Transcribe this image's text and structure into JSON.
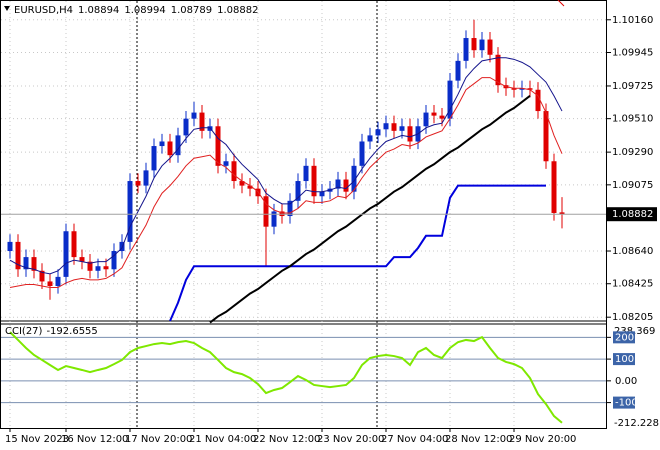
{
  "chart_data": [
    {
      "type": "candlestick",
      "symbol": "EURUSD,H4",
      "categories": [
        "15 Nov 2023",
        null,
        null,
        null,
        null,
        null,
        null,
        "16 Nov 12:00",
        null,
        null,
        null,
        null,
        null,
        null,
        null,
        "17 Nov 20:00",
        null,
        null,
        null,
        null,
        null,
        null,
        null,
        "21 Nov 04:00",
        null,
        null,
        null,
        null,
        null,
        null,
        null,
        "22 Nov 12:00",
        null,
        null,
        null,
        null,
        null,
        null,
        null,
        "23 Nov 20:00",
        null,
        null,
        null,
        null,
        null,
        null,
        null,
        "27 Nov 04:00",
        null,
        null,
        null,
        null,
        null,
        null,
        null,
        "28 Nov 12:00",
        null,
        null,
        null,
        null,
        null,
        null,
        null,
        "29 Nov 20:00",
        null,
        null,
        null,
        null,
        null,
        null
      ],
      "open": [
        1.0864,
        1.087,
        1.0852,
        1.086,
        1.0851,
        1.0844,
        1.0841,
        1.0847,
        1.0877,
        1.086,
        1.0857,
        1.0851,
        1.0854,
        1.0852,
        1.0864,
        1.087,
        1.091,
        1.0907,
        1.0917,
        1.0933,
        1.0936,
        1.0927,
        1.094,
        1.0951,
        1.0955,
        1.0943,
        1.0946,
        1.092,
        1.0923,
        1.091,
        1.0907,
        1.0905,
        1.09,
        1.088,
        1.089,
        1.0887,
        1.0897,
        1.091,
        1.092,
        1.09,
        1.0903,
        1.0905,
        1.0911,
        1.0903,
        1.092,
        1.0936,
        1.094,
        1.0944,
        1.0948,
        1.0943,
        1.0946,
        1.0936,
        1.0946,
        1.0955,
        1.0953,
        1.0951,
        1.0976,
        1.0989,
        1.1004,
        1.0996,
        1.1003,
        1.0993,
        1.0973,
        1.0971,
        1.097,
        1.0971,
        1.097,
        1.0956,
        1.0923,
        1.08894
      ],
      "high": [
        1.0875,
        1.0875,
        1.0865,
        1.0865,
        1.0856,
        1.0849,
        1.0852,
        1.0882,
        1.0882,
        1.0865,
        1.0862,
        1.0859,
        1.0859,
        1.0869,
        1.0875,
        1.0915,
        1.0915,
        1.0922,
        1.0938,
        1.0941,
        1.0941,
        1.0945,
        1.0956,
        1.0962,
        1.096,
        1.0951,
        1.0951,
        1.0928,
        1.0928,
        1.0915,
        1.0912,
        1.091,
        1.0905,
        1.0895,
        1.0895,
        1.0902,
        1.0915,
        1.0925,
        1.0925,
        1.0908,
        1.091,
        1.0916,
        1.0916,
        1.0925,
        1.0941,
        1.0945,
        1.0949,
        1.0953,
        1.0953,
        1.0951,
        1.0951,
        1.0951,
        1.096,
        1.096,
        1.0958,
        1.0981,
        1.0994,
        1.1009,
        1.1016,
        1.1008,
        1.1008,
        1.0998,
        1.0978,
        1.0976,
        1.0976,
        1.0976,
        1.0975,
        1.0961,
        1.0928,
        1.08994
      ],
      "low": [
        1.0859,
        1.0847,
        1.0847,
        1.0846,
        1.0839,
        1.0832,
        1.0836,
        1.0842,
        1.0855,
        1.0852,
        1.0846,
        1.0846,
        1.0847,
        1.0847,
        1.0859,
        1.0865,
        1.0902,
        1.0902,
        1.0912,
        1.0928,
        1.0922,
        1.0922,
        1.0935,
        1.0946,
        1.0938,
        1.0938,
        1.0915,
        1.0915,
        1.0905,
        1.0902,
        1.09,
        1.0895,
        1.0854,
        1.0875,
        1.0882,
        1.0882,
        1.0892,
        1.0905,
        1.0895,
        1.0895,
        1.0898,
        1.09,
        1.0898,
        1.0898,
        1.0915,
        1.0931,
        1.0935,
        1.0939,
        1.0938,
        1.0938,
        1.0931,
        1.0931,
        1.0941,
        1.0948,
        1.0946,
        1.0946,
        1.0971,
        1.0984,
        1.0991,
        1.0991,
        1.0988,
        1.0968,
        1.0966,
        1.0965,
        1.0965,
        1.0965,
        1.0951,
        1.0918,
        1.0884,
        1.08789
      ],
      "close": [
        1.087,
        1.0852,
        1.086,
        1.0851,
        1.0844,
        1.0841,
        1.0847,
        1.0877,
        1.086,
        1.0857,
        1.0851,
        1.0854,
        1.0852,
        1.0864,
        1.087,
        1.091,
        1.0907,
        1.0917,
        1.0933,
        1.0936,
        1.0927,
        1.094,
        1.0951,
        1.0955,
        1.0943,
        1.0946,
        1.092,
        1.0923,
        1.091,
        1.0907,
        1.0905,
        1.09,
        1.088,
        1.089,
        1.0887,
        1.0897,
        1.091,
        1.092,
        1.09,
        1.0903,
        1.0905,
        1.0911,
        1.0903,
        1.092,
        1.0936,
        1.094,
        1.0944,
        1.0948,
        1.0943,
        1.0946,
        1.0936,
        1.0946,
        1.0955,
        1.0953,
        1.0951,
        1.0976,
        1.0989,
        1.1004,
        1.0996,
        1.1003,
        1.0993,
        1.0973,
        1.0971,
        1.097,
        1.0971,
        1.097,
        1.0956,
        1.0923,
        1.0889,
        1.08882
      ],
      "up_color": "#0a2dc8",
      "down_color": "#e00000",
      "series": [
        {
          "color": "#14148c",
          "width": 1,
          "values": [
            1.0858,
            1.0855,
            1.0853,
            1.0852,
            1.085,
            1.0849,
            1.0851,
            1.0856,
            1.0858,
            1.0857,
            1.0856,
            1.0857,
            1.0857,
            1.0861,
            1.0866,
            1.088,
            1.089,
            1.09,
            1.0912,
            1.092,
            1.0925,
            1.0931,
            1.0938,
            1.0944,
            1.0945,
            1.0945,
            1.0938,
            1.0934,
            1.0927,
            1.0921,
            1.0916,
            1.0911,
            1.0902,
            1.0898,
            1.0895,
            1.0895,
            1.0899,
            1.0904,
            1.0903,
            1.0903,
            1.0904,
            1.0906,
            1.0905,
            1.091,
            1.0918,
            1.0925,
            1.0931,
            1.0936,
            1.0938,
            1.094,
            1.0939,
            1.0941,
            1.0945,
            1.0947,
            1.0948,
            1.0957,
            1.0967,
            1.0978,
            1.0984,
            1.0989,
            1.099,
            1.0991,
            1.0991,
            1.099,
            1.0988,
            1.0985,
            1.098,
            1.0975,
            1.0966,
            1.0956
          ]
        },
        {
          "color": "#e02020",
          "width": 1,
          "values": [
            1.084,
            1.0841,
            1.0842,
            1.0842,
            1.0841,
            1.084,
            1.084,
            1.0843,
            1.0845,
            1.0846,
            1.0845,
            1.0845,
            1.0846,
            1.0849,
            1.0853,
            1.0863,
            1.0872,
            1.0881,
            1.0893,
            1.0902,
            1.0907,
            1.0913,
            1.092,
            1.0925,
            1.0926,
            1.0927,
            1.0922,
            1.0919,
            1.0914,
            1.091,
            1.0907,
            1.0903,
            1.0895,
            1.0891,
            1.0889,
            1.0889,
            1.0892,
            1.0897,
            1.0896,
            1.0896,
            1.0897,
            1.09,
            1.0899,
            1.0904,
            1.0912,
            1.0919,
            1.0924,
            1.0929,
            1.0931,
            1.0934,
            1.0933,
            1.0935,
            1.0939,
            1.0941,
            1.0943,
            1.0951,
            1.096,
            1.097,
            1.0974,
            1.0978,
            1.0978,
            1.0975,
            1.0972,
            1.0971,
            1.0971,
            1.097,
            1.0966,
            1.0955,
            1.094,
            1.0928
          ]
        },
        {
          "color": "#0000dd",
          "width": 2,
          "values": [
            null,
            null,
            null,
            null,
            null,
            null,
            null,
            null,
            null,
            null,
            null,
            null,
            null,
            null,
            null,
            null,
            null,
            null,
            null,
            null,
            1.0818,
            1.083,
            1.0845,
            1.0854,
            1.0854,
            1.0854,
            1.0854,
            1.0854,
            1.0854,
            1.0854,
            1.0854,
            1.0854,
            1.0854,
            1.0854,
            1.0854,
            1.0854,
            1.0854,
            1.0854,
            1.0854,
            1.0854,
            1.0854,
            1.0854,
            1.0854,
            1.0854,
            1.0854,
            1.0854,
            1.0854,
            1.0854,
            1.086,
            1.086,
            1.086,
            1.0866,
            1.0874,
            1.0874,
            1.0874,
            1.0899,
            1.0907,
            1.0907,
            1.0907,
            1.0907,
            1.0907,
            1.0907,
            1.0907,
            1.0907,
            1.0907,
            1.0907,
            1.0907,
            1.0907,
            null,
            null
          ]
        },
        {
          "color": "#000000",
          "width": 2,
          "values": [
            null,
            null,
            null,
            null,
            null,
            null,
            null,
            null,
            null,
            null,
            null,
            null,
            null,
            null,
            null,
            null,
            null,
            null,
            null,
            null,
            null,
            null,
            null,
            null,
            null,
            1.0817,
            1.0821,
            1.0824,
            1.0828,
            1.0832,
            1.0836,
            1.0839,
            1.0843,
            1.0847,
            1.0851,
            1.0854,
            1.0858,
            1.0862,
            1.0865,
            1.0869,
            1.0873,
            1.0877,
            1.088,
            1.0884,
            1.0888,
            1.0892,
            1.0895,
            1.0899,
            1.0903,
            1.0906,
            1.091,
            1.0914,
            1.0918,
            1.0921,
            1.0925,
            1.0929,
            1.0932,
            1.0936,
            1.094,
            1.0944,
            1.0947,
            1.0951,
            1.0955,
            1.0958,
            1.0962,
            1.0966,
            null,
            null,
            null,
            null
          ]
        }
      ],
      "ylim": [
        1.0818,
        1.1029
      ],
      "yticks": [
        {
          "value": 1.1016,
          "label": "1.10160"
        },
        {
          "value": 1.09945,
          "label": "1.09945"
        },
        {
          "value": 1.09725,
          "label": "1.09725"
        },
        {
          "value": 1.0951,
          "label": "1.09510"
        },
        {
          "value": 1.0929,
          "label": "1.09290"
        },
        {
          "value": 1.09075,
          "label": "1.09075"
        },
        {
          "value": 1.0864,
          "label": "1.08640"
        },
        {
          "value": 1.08425,
          "label": "1.08425"
        },
        {
          "value": 1.08205,
          "label": "1.08205"
        }
      ],
      "grid": true
    },
    {
      "type": "line",
      "title": "CCI(27)",
      "color": "#7fe800",
      "values": [
        224,
        188,
        151,
        119,
        96,
        73,
        50,
        68,
        59,
        50,
        40,
        50,
        59,
        77,
        96,
        132,
        151,
        160,
        169,
        174,
        169,
        178,
        183,
        174,
        151,
        132,
        96,
        59,
        40,
        31,
        13,
        -15,
        -56,
        -42,
        -33,
        -6,
        22,
        4,
        -19,
        -24,
        -29,
        -24,
        -19,
        13,
        73,
        105,
        114,
        119,
        114,
        105,
        73,
        132,
        151,
        119,
        105,
        151,
        178,
        188,
        183,
        201,
        151,
        105,
        87,
        77,
        59,
        13,
        -61,
        -107,
        -162,
        -192.6555
      ],
      "ylim": [
        -212.2281,
        238.369
      ],
      "yticks": [
        200,
        100,
        {
          "value": 0,
          "label": "0.00"
        },
        -100
      ],
      "grid": true
    }
  ]
}
